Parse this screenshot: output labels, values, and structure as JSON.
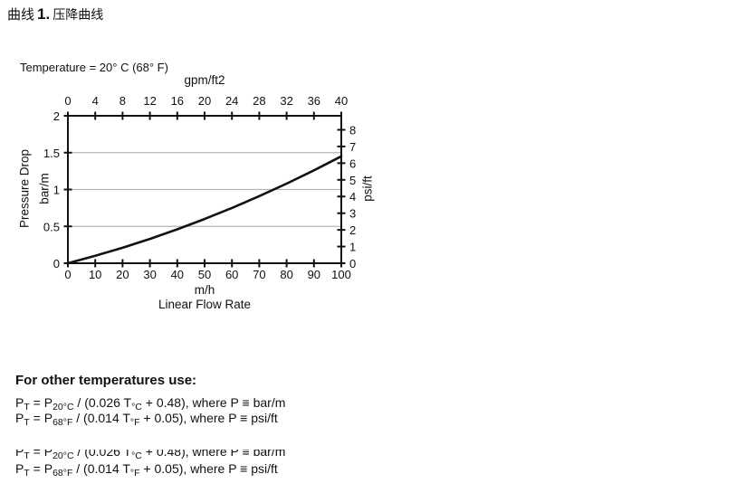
{
  "title": {
    "prefix": "曲线",
    "number": "1.",
    "suffix": "压降曲线"
  },
  "chart": {
    "temperature_note": "Temperature = 20° C (68° F)",
    "colors": {
      "axis": "#111111",
      "grid": "#b5b5b5",
      "curve": "#111111",
      "text": "#111111"
    }
  },
  "chart_data": {
    "type": "line",
    "title": "曲线 1. 压降曲线 (Pressure Drop Curve)",
    "annotation": "Temperature = 20° C (68° F)",
    "x": [
      0,
      10,
      20,
      30,
      40,
      50,
      60,
      70,
      80,
      90,
      100
    ],
    "series": [
      {
        "name": "pressure_drop_bar_per_m",
        "values": [
          0,
          0.1,
          0.21,
          0.33,
          0.46,
          0.6,
          0.75,
          0.91,
          1.08,
          1.26,
          1.45
        ]
      }
    ],
    "axes": {
      "bottom": {
        "label": "Linear Flow Rate",
        "unit": "m/h",
        "ticks": [
          0,
          10,
          20,
          30,
          40,
          50,
          60,
          70,
          80,
          90,
          100
        ],
        "min": 0,
        "max": 100
      },
      "top": {
        "unit": "gpm/ft2",
        "ticks": [
          0,
          4,
          8,
          12,
          16,
          20,
          24,
          28,
          32,
          36,
          40
        ],
        "min": 0,
        "max": 40
      },
      "left": {
        "label": "Pressure Drop",
        "unit": "bar/m",
        "ticks": [
          0,
          0.5,
          1,
          1.5,
          2
        ],
        "min": 0,
        "max": 2
      },
      "right": {
        "unit": "psi/ft",
        "ticks": [
          0,
          1,
          2,
          3,
          4,
          5,
          6,
          7,
          8
        ],
        "min": 0,
        "max": 8.84
      }
    },
    "gridlines_y": [
      0.5,
      1,
      1.5
    ],
    "legend": "none"
  },
  "formulas": {
    "heading": "For other temperatures use:",
    "bar_line": [
      {
        "t": "P"
      },
      {
        "t": "T",
        "sub": true
      },
      {
        "t": " = P"
      },
      {
        "t": "20°C",
        "sub": true
      },
      {
        "t": " / (0.026 T"
      },
      {
        "t": "°C",
        "sub": true
      },
      {
        "t": " + 0.48), where P ≡ bar/m"
      }
    ],
    "psi_line": [
      {
        "t": "P"
      },
      {
        "t": "T",
        "sub": true
      },
      {
        "t": " = P"
      },
      {
        "t": "68°F",
        "sub": true
      },
      {
        "t": " / (0.014 T"
      },
      {
        "t": "°F",
        "sub": true
      },
      {
        "t": " + 0.05), where P ≡ psi/ft"
      }
    ]
  }
}
